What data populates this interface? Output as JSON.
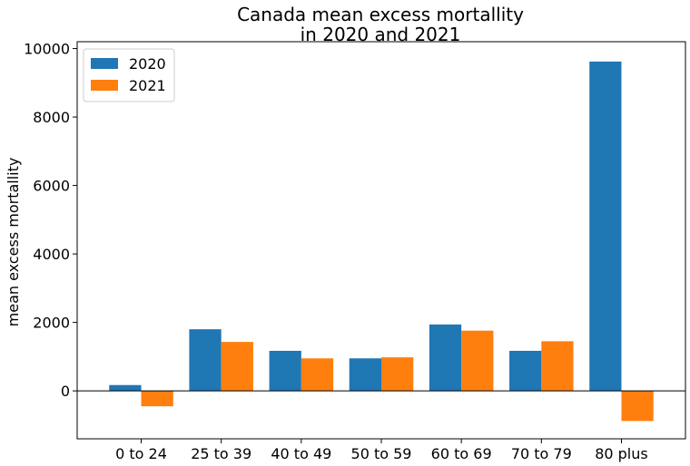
{
  "chart_data": {
    "type": "bar",
    "title": "Canada mean excess mortallity\nin 2020 and 2021",
    "title_lines": [
      "Canada mean excess mortallity",
      "in 2020 and 2021"
    ],
    "xlabel": "",
    "ylabel": "mean excess mortallity",
    "categories": [
      "0 to 24",
      "25 to 39",
      "40 to 49",
      "50 to 59",
      "60 to 69",
      "70 to 79",
      "80 plus"
    ],
    "series": [
      {
        "name": "2020",
        "color": "#1f77b4",
        "values": [
          170,
          1800,
          1170,
          950,
          1940,
          1170,
          9620
        ]
      },
      {
        "name": "2021",
        "color": "#ff7f0e",
        "values": [
          -450,
          1430,
          950,
          980,
          1760,
          1450,
          -880
        ]
      }
    ],
    "ylim": [
      -1400,
      10200
    ],
    "yticks": [
      0,
      2000,
      4000,
      6000,
      8000,
      10000
    ],
    "ytick_labels": [
      "0",
      "2000",
      "4000",
      "6000",
      "8000",
      "10000"
    ],
    "zero_line": true,
    "grid": false,
    "legend": {
      "placement": "top-left",
      "entries": [
        "2020",
        "2021"
      ]
    }
  }
}
